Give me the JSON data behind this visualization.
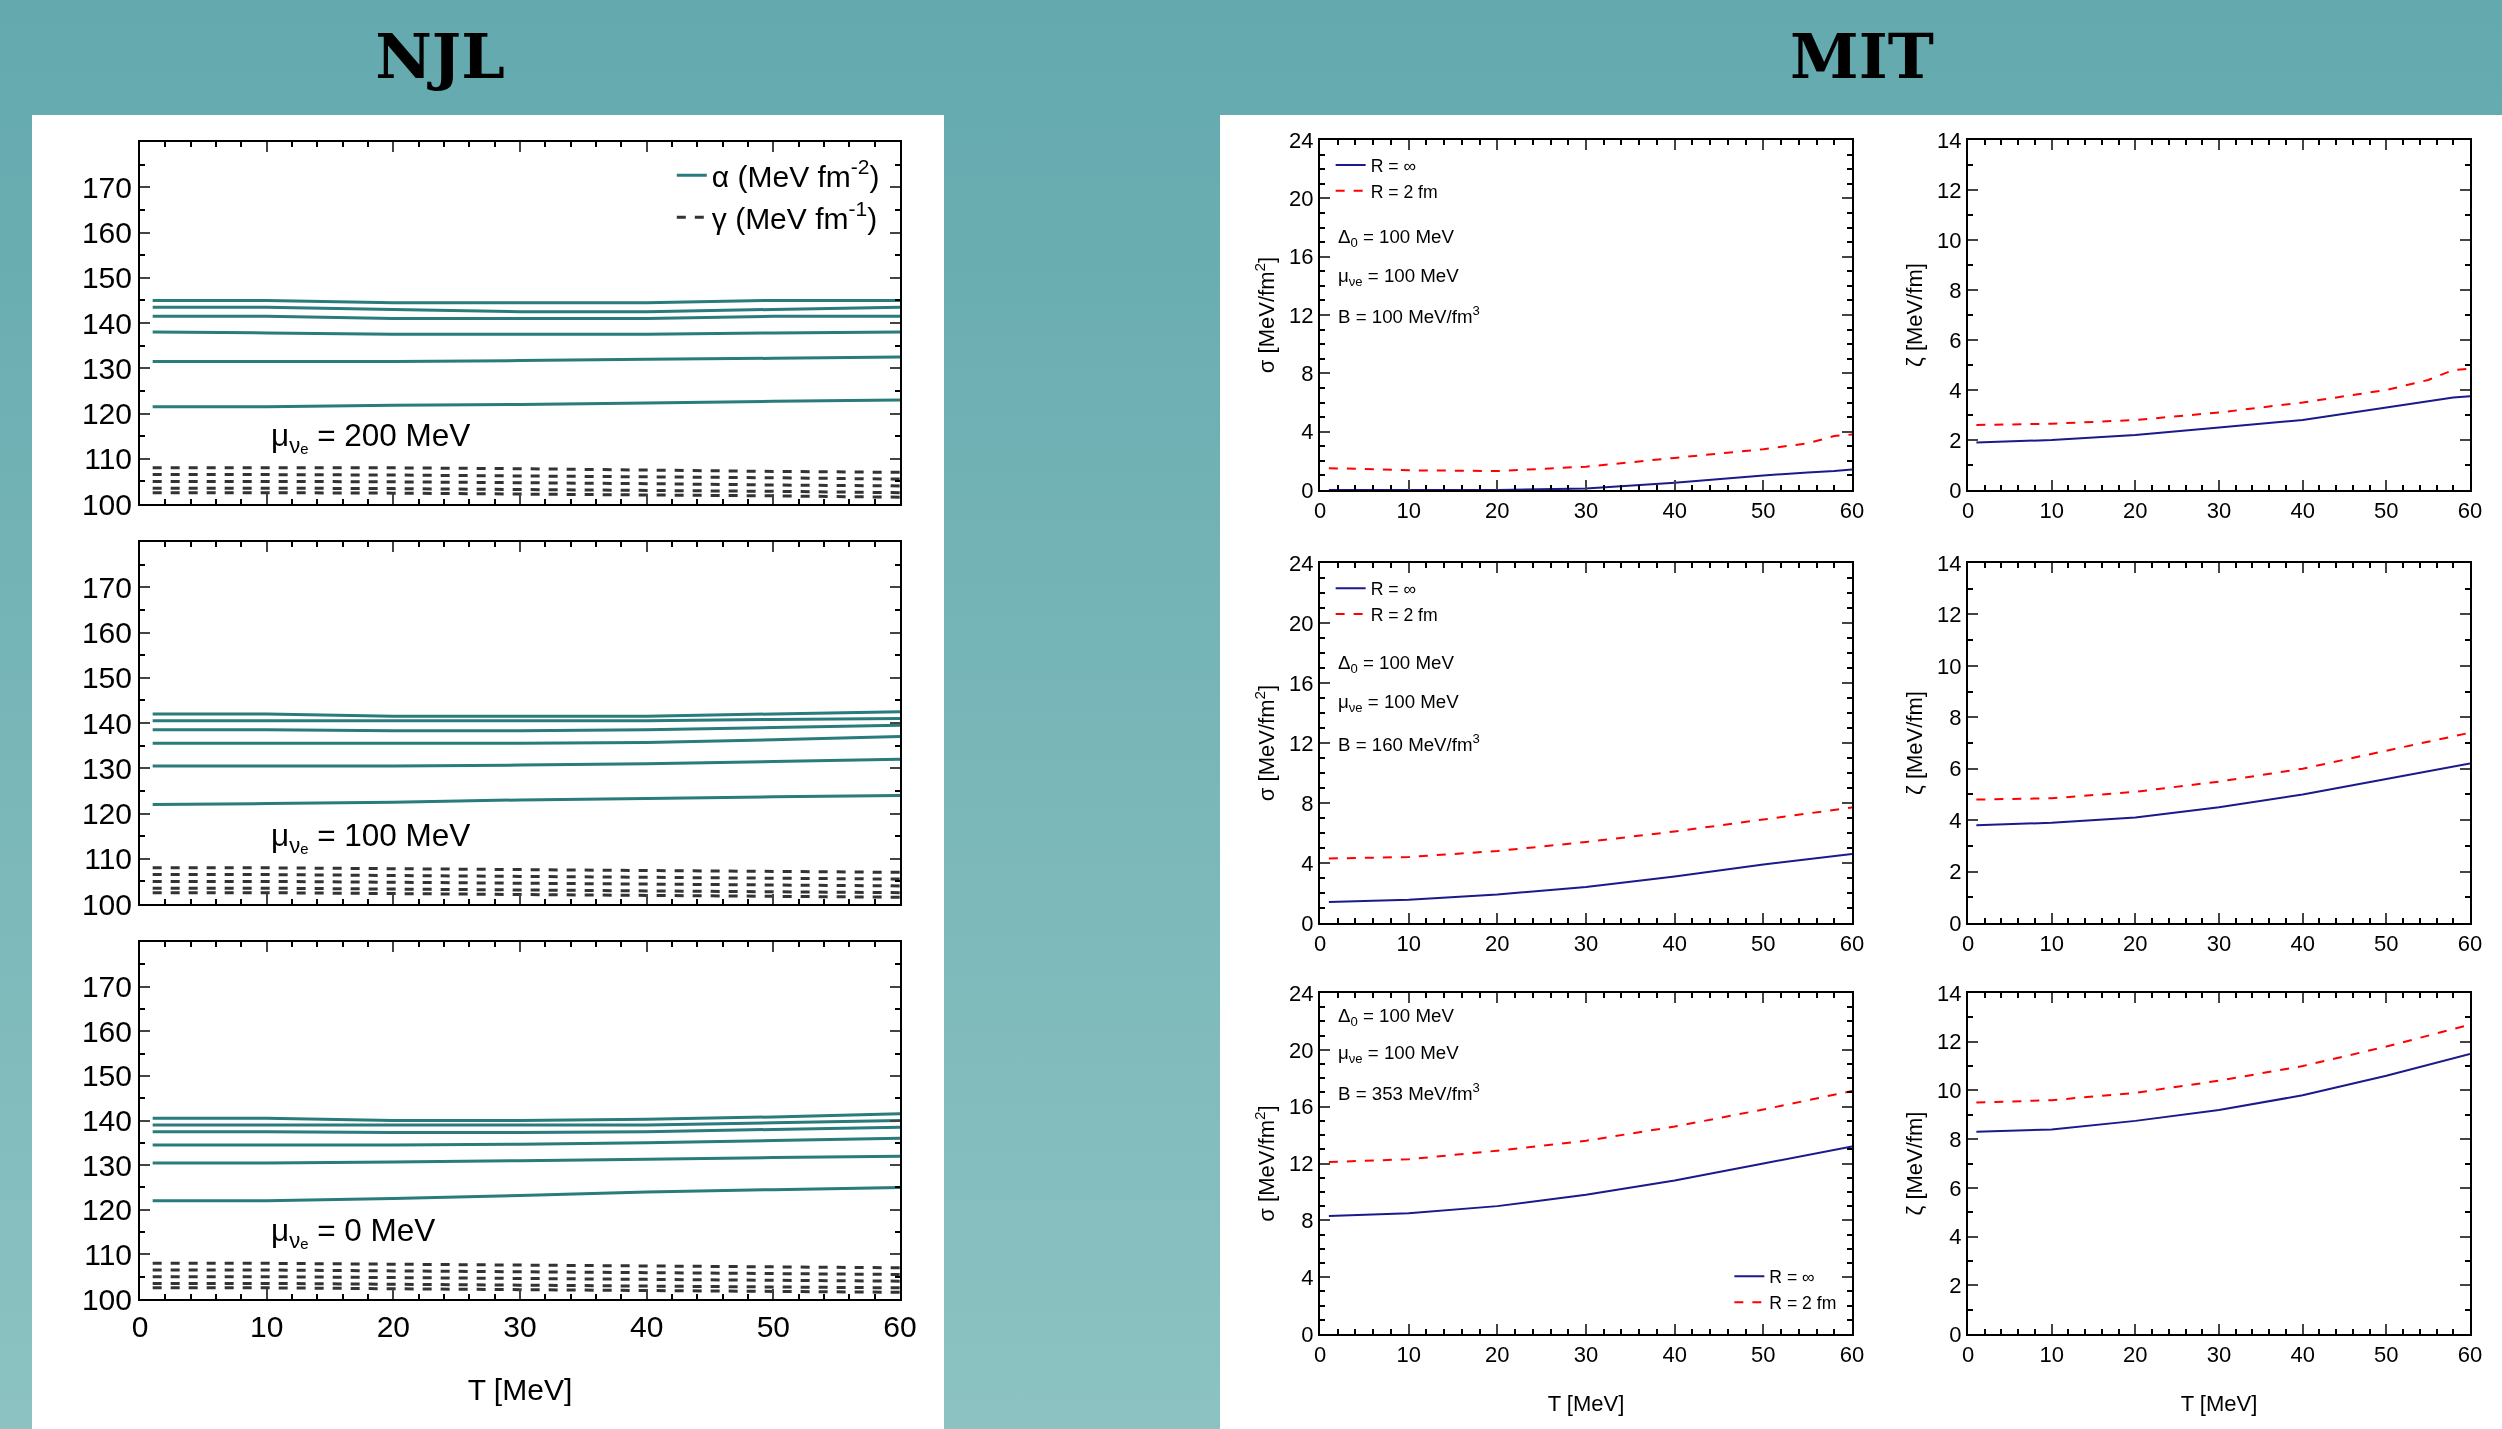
{
  "chart_data": [
    {
      "type": "line",
      "title": "NJL",
      "x": [
        1,
        10,
        20,
        30,
        40,
        50,
        60
      ],
      "xlim": [
        0,
        60
      ],
      "xticks": [
        0,
        10,
        20,
        30,
        40,
        50,
        60
      ],
      "ylim": [
        100,
        180
      ],
      "yticks": [
        100,
        110,
        120,
        130,
        140,
        150,
        160,
        170
      ],
      "tick_labels": "y",
      "legend": "top right",
      "annotations": [
        "μ$_{νₑ}$ = 200 MeV"
      ],
      "series": [
        {
          "name": "α (MeV fm$^{-2}$)",
          "color": "#2a7b7b",
          "line_style": "solid",
          "values": [
            145,
            145,
            144.5,
            144.5,
            144.5,
            145,
            145
          ]
        },
        {
          "color": "#2a7b7b",
          "line_style": "solid",
          "values": [
            143.5,
            143.5,
            143,
            142.5,
            142.5,
            143,
            143.5
          ]
        },
        {
          "color": "#2a7b7b",
          "line_style": "solid",
          "values": [
            141.5,
            141.5,
            141,
            141,
            141,
            141.5,
            141.5
          ]
        },
        {
          "color": "#2a7b7b",
          "line_style": "solid",
          "values": [
            138,
            137.8,
            137.5,
            137.5,
            137.5,
            137.8,
            138
          ]
        },
        {
          "color": "#2a7b7b",
          "line_style": "solid",
          "values": [
            131.5,
            131.5,
            131.5,
            131.7,
            132,
            132.2,
            132.5
          ]
        },
        {
          "color": "#2a7b7b",
          "line_style": "solid",
          "values": [
            121.5,
            121.5,
            121.8,
            122,
            122.3,
            122.7,
            123
          ]
        },
        {
          "name": "γ (MeV fm$^{-1}$)",
          "color": "#333333",
          "line_style": "dashed",
          "values": [
            108,
            108,
            108,
            107.8,
            107.5,
            107.2,
            107
          ]
        },
        {
          "color": "#333333",
          "line_style": "dashed",
          "values": [
            106.5,
            106.5,
            106.4,
            106.2,
            106,
            105.8,
            105.5
          ]
        },
        {
          "color": "#333333",
          "line_style": "dashed",
          "values": [
            105,
            105,
            104.9,
            104.7,
            104.5,
            104.2,
            104
          ]
        },
        {
          "color": "#333333",
          "line_style": "dashed",
          "values": [
            103.5,
            103.5,
            103.4,
            103.2,
            103,
            102.8,
            102.5
          ]
        },
        {
          "color": "#333333",
          "line_style": "dashed",
          "values": [
            102.5,
            102.5,
            102.4,
            102.2,
            102,
            101.8,
            101.5
          ]
        }
      ]
    },
    {
      "type": "line",
      "x": [
        1,
        10,
        20,
        30,
        40,
        50,
        60
      ],
      "xlim": [
        0,
        60
      ],
      "xticks": [
        0,
        10,
        20,
        30,
        40,
        50,
        60
      ],
      "ylim": [
        100,
        180
      ],
      "yticks": [
        100,
        110,
        120,
        130,
        140,
        150,
        160,
        170
      ],
      "tick_labels": "y",
      "annotations": [
        "μ$_{νₑ}$ = 100 MeV"
      ],
      "series": [
        {
          "color": "#2a7b7b",
          "line_style": "solid",
          "values": [
            142,
            142,
            141.5,
            141.5,
            141.5,
            142,
            142.5
          ]
        },
        {
          "color": "#2a7b7b",
          "line_style": "solid",
          "values": [
            140.5,
            140.5,
            140.5,
            140.5,
            140.5,
            140.8,
            141
          ]
        },
        {
          "color": "#2a7b7b",
          "line_style": "solid",
          "values": [
            138.5,
            138.5,
            138.3,
            138.3,
            138.5,
            139,
            139.5
          ]
        },
        {
          "color": "#2a7b7b",
          "line_style": "solid",
          "values": [
            135.5,
            135.5,
            135.5,
            135.5,
            135.7,
            136.3,
            137
          ]
        },
        {
          "color": "#2a7b7b",
          "line_style": "solid",
          "values": [
            130.5,
            130.5,
            130.5,
            130.7,
            131,
            131.5,
            132
          ]
        },
        {
          "color": "#2a7b7b",
          "line_style": "solid",
          "values": [
            122,
            122.2,
            122.5,
            123,
            123.3,
            123.7,
            124
          ]
        },
        {
          "color": "#333333",
          "line_style": "dashed",
          "values": [
            108,
            108,
            107.8,
            107.6,
            107.4,
            107.2,
            107
          ]
        },
        {
          "color": "#333333",
          "line_style": "dashed",
          "values": [
            106.5,
            106.5,
            106.3,
            106.1,
            105.9,
            105.7,
            105.5
          ]
        },
        {
          "color": "#333333",
          "line_style": "dashed",
          "values": [
            105,
            105,
            104.8,
            104.6,
            104.4,
            104.2,
            104
          ]
        },
        {
          "color": "#333333",
          "line_style": "dashed",
          "values": [
            103.5,
            103.5,
            103.3,
            103.1,
            102.9,
            102.7,
            102.5
          ]
        },
        {
          "color": "#333333",
          "line_style": "dashed",
          "values": [
            102.5,
            102.5,
            102.3,
            102.1,
            101.9,
            101.7,
            101.5
          ]
        }
      ]
    },
    {
      "type": "line",
      "x": [
        1,
        10,
        20,
        30,
        40,
        50,
        60
      ],
      "xlim": [
        0,
        60
      ],
      "xticks": [
        0,
        10,
        20,
        30,
        40,
        50,
        60
      ],
      "ylim": [
        100,
        180
      ],
      "yticks": [
        100,
        110,
        120,
        130,
        140,
        150,
        160,
        170
      ],
      "xlabel": "T [MeV]",
      "annotations": [
        "μ$_{νₑ}$ = 0 MeV"
      ],
      "series": [
        {
          "color": "#2a7b7b",
          "line_style": "solid",
          "values": [
            140.5,
            140.5,
            140,
            140,
            140.3,
            140.8,
            141.5
          ]
        },
        {
          "color": "#2a7b7b",
          "line_style": "solid",
          "values": [
            139,
            139,
            139,
            139,
            139,
            139.5,
            140
          ]
        },
        {
          "color": "#2a7b7b",
          "line_style": "solid",
          "values": [
            137.5,
            137.5,
            137.3,
            137.3,
            137.5,
            138,
            138.5
          ]
        },
        {
          "color": "#2a7b7b",
          "line_style": "solid",
          "values": [
            134.5,
            134.5,
            134.5,
            134.7,
            135,
            135.5,
            136
          ]
        },
        {
          "color": "#2a7b7b",
          "line_style": "solid",
          "values": [
            130.5,
            130.5,
            130.7,
            131,
            131.3,
            131.7,
            132
          ]
        },
        {
          "color": "#2a7b7b",
          "line_style": "solid",
          "values": [
            122,
            122,
            122.5,
            123.2,
            124,
            124.5,
            125
          ]
        },
        {
          "color": "#333333",
          "line_style": "dashed",
          "values": [
            108,
            108,
            107.8,
            107.6,
            107.4,
            107.2,
            107
          ]
        },
        {
          "color": "#333333",
          "line_style": "dashed",
          "values": [
            106.5,
            106.5,
            106.3,
            106.1,
            105.9,
            105.7,
            105.5
          ]
        },
        {
          "color": "#333333",
          "line_style": "dashed",
          "values": [
            105,
            105,
            104.8,
            104.6,
            104.4,
            104.2,
            104
          ]
        },
        {
          "color": "#333333",
          "line_style": "dashed",
          "values": [
            103.5,
            103.5,
            103.3,
            103.1,
            102.9,
            102.7,
            102.5
          ]
        },
        {
          "color": "#333333",
          "line_style": "dashed",
          "values": [
            102.5,
            102.5,
            102.3,
            102.1,
            101.9,
            101.7,
            101.5
          ]
        }
      ]
    },
    {
      "type": "line",
      "title": "MIT",
      "x": [
        1,
        10,
        20,
        30,
        40,
        50,
        55,
        58,
        60
      ],
      "xlim": [
        0,
        60
      ],
      "xticks": [
        0,
        10,
        20,
        30,
        40,
        50,
        60
      ],
      "ylim": [
        0,
        24
      ],
      "yticks": [
        0,
        4,
        8,
        12,
        16,
        20,
        24
      ],
      "ylabel": "σ [MeV/fm$^{2}$]",
      "legend": "top left",
      "annotations": [
        "Δ$_{0}$ = 100 MeV",
        "μ$_{νe}$ = 100 MeV",
        "B = 100 MeV/fm$^{3}$"
      ],
      "series": [
        {
          "name": "R = ∞",
          "color": "#1a1a8c",
          "line_style": "solid",
          "values": [
            0,
            0,
            0,
            0.1,
            0.5,
            1.0,
            1.2,
            1.3,
            1.4
          ]
        },
        {
          "name": "R = 2 fm",
          "color": "#ff0000",
          "line_style": "dashed",
          "values": [
            1.5,
            1.35,
            1.3,
            1.6,
            2.2,
            2.8,
            3.2,
            3.7,
            3.8
          ]
        }
      ]
    },
    {
      "type": "line",
      "x": [
        1,
        10,
        20,
        30,
        40,
        50,
        55,
        58,
        60
      ],
      "xlim": [
        0,
        60
      ],
      "xticks": [
        0,
        10,
        20,
        30,
        40,
        50,
        60
      ],
      "ylim": [
        0,
        14
      ],
      "yticks": [
        0,
        2,
        4,
        6,
        8,
        10,
        12,
        14
      ],
      "ylabel": "ζ [MeV/fm]",
      "series": [
        {
          "color": "#1a1a8c",
          "line_style": "solid",
          "values": [
            1.9,
            2.0,
            2.2,
            2.5,
            2.8,
            3.3,
            3.55,
            3.7,
            3.75
          ]
        },
        {
          "color": "#ff0000",
          "line_style": "dashed",
          "values": [
            2.6,
            2.65,
            2.8,
            3.1,
            3.5,
            4.0,
            4.4,
            4.8,
            4.85
          ]
        }
      ]
    },
    {
      "type": "line",
      "x": [
        1,
        10,
        20,
        30,
        40,
        50,
        60
      ],
      "xlim": [
        0,
        60
      ],
      "xticks": [
        0,
        10,
        20,
        30,
        40,
        50,
        60
      ],
      "ylim": [
        0,
        24
      ],
      "yticks": [
        0,
        4,
        8,
        12,
        16,
        20,
        24
      ],
      "ylabel": "σ [MeV/fm$^{2}$]",
      "legend": "top left",
      "annotations": [
        "Δ$_{0}$ = 100 MeV",
        "μ$_{νe}$ = 100 MeV",
        "B = 160 MeV/fm$^{3}$"
      ],
      "series": [
        {
          "name": "R = ∞",
          "color": "#1a1a8c",
          "line_style": "solid",
          "values": [
            1.4,
            1.55,
            1.9,
            2.4,
            3.1,
            3.9,
            4.6
          ]
        },
        {
          "name": "R = 2 fm",
          "color": "#ff0000",
          "line_style": "dashed",
          "values": [
            4.3,
            4.4,
            4.8,
            5.4,
            6.1,
            6.9,
            7.7
          ]
        }
      ]
    },
    {
      "type": "line",
      "x": [
        1,
        10,
        20,
        30,
        40,
        50,
        60
      ],
      "xlim": [
        0,
        60
      ],
      "xticks": [
        0,
        10,
        20,
        30,
        40,
        50,
        60
      ],
      "ylim": [
        0,
        14
      ],
      "yticks": [
        0,
        2,
        4,
        6,
        8,
        10,
        12,
        14
      ],
      "ylabel": "ζ [MeV/fm]",
      "series": [
        {
          "color": "#1a1a8c",
          "line_style": "solid",
          "values": [
            3.8,
            3.9,
            4.1,
            4.5,
            5.0,
            5.6,
            6.2
          ]
        },
        {
          "color": "#ff0000",
          "line_style": "dashed",
          "values": [
            4.8,
            4.85,
            5.1,
            5.5,
            6.0,
            6.7,
            7.4
          ]
        }
      ]
    },
    {
      "type": "line",
      "x": [
        1,
        10,
        20,
        30,
        40,
        50,
        60
      ],
      "xlim": [
        0,
        60
      ],
      "xticks": [
        0,
        10,
        20,
        30,
        40,
        50,
        60
      ],
      "ylim": [
        0,
        24
      ],
      "yticks": [
        0,
        4,
        8,
        12,
        16,
        20,
        24
      ],
      "xlabel": "T [MeV]",
      "ylabel": "σ [MeV/fm$^{2}$]",
      "legend": "bottom right",
      "annotations": [
        "Δ$_{0}$ = 100 MeV",
        "μ$_{νe}$ = 100 MeV",
        "B = 353 MeV/fm$^{3}$"
      ],
      "series": [
        {
          "name": "R = ∞",
          "color": "#1a1a8c",
          "line_style": "solid",
          "values": [
            8.3,
            8.5,
            9.0,
            9.8,
            10.8,
            12.0,
            13.2
          ]
        },
        {
          "name": "R = 2 fm",
          "color": "#ff0000",
          "line_style": "dashed",
          "values": [
            12.1,
            12.3,
            12.9,
            13.6,
            14.6,
            15.8,
            17.1
          ]
        }
      ]
    },
    {
      "type": "line",
      "x": [
        1,
        10,
        20,
        30,
        40,
        50,
        60
      ],
      "xlim": [
        0,
        60
      ],
      "xticks": [
        0,
        10,
        20,
        30,
        40,
        50,
        60
      ],
      "ylim": [
        0,
        14
      ],
      "yticks": [
        0,
        2,
        4,
        6,
        8,
        10,
        12,
        14
      ],
      "xlabel": "T [MeV]",
      "ylabel": "ζ [MeV/fm]",
      "series": [
        {
          "color": "#1a1a8c",
          "line_style": "solid",
          "values": [
            8.3,
            8.4,
            8.75,
            9.2,
            9.8,
            10.6,
            11.5
          ]
        },
        {
          "color": "#ff0000",
          "line_style": "dashed",
          "values": [
            9.5,
            9.6,
            9.9,
            10.4,
            11.0,
            11.8,
            12.7
          ]
        }
      ]
    }
  ]
}
